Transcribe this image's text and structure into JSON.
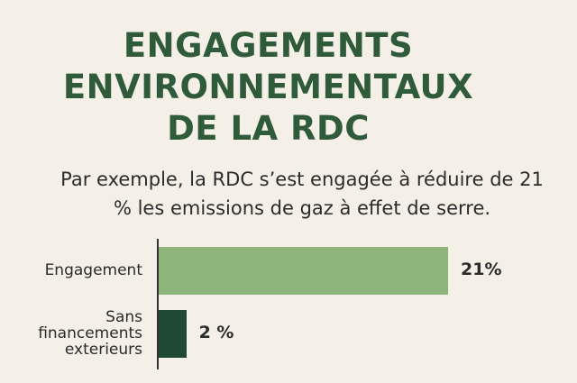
{
  "chart_data": {
    "type": "bar",
    "orientation": "horizontal",
    "title": "ENGAGEMENTS ENVIRONNEMENTAUX DE LA RDC",
    "subtitle": "Par exemple, la RDC s’est engagée à réduire de 21 % les emissions de gaz à effet de serre.",
    "categories": [
      "Engagement",
      "Sans financements exterieurs"
    ],
    "values": [
      21,
      2
    ],
    "value_labels": [
      "21%",
      "2 %"
    ],
    "colors": [
      "#8db47b",
      "#1e4a33"
    ]
  }
}
